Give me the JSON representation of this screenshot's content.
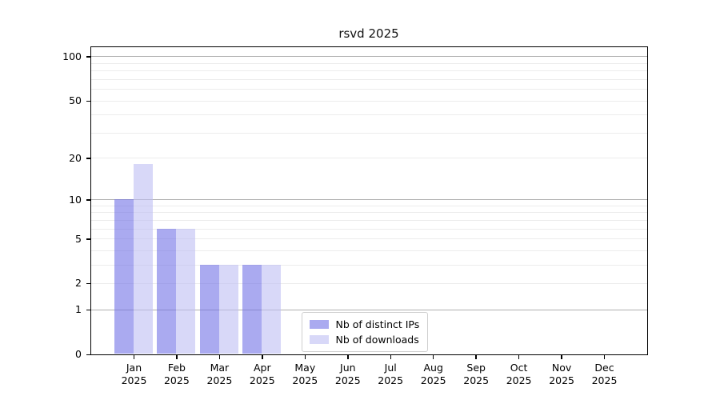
{
  "chart_data": {
    "type": "bar",
    "title": "rsvd 2025",
    "months": [
      "Jan",
      "Feb",
      "Mar",
      "Apr",
      "May",
      "Jun",
      "Jul",
      "Aug",
      "Sep",
      "Oct",
      "Nov",
      "Dec"
    ],
    "year_label": "2025",
    "series": [
      {
        "name": "Nb of distinct IPs",
        "color": "rgba(113,113,230,0.6)",
        "values": [
          10,
          6,
          3,
          3,
          0,
          0,
          0,
          0,
          0,
          0,
          0,
          0
        ]
      },
      {
        "name": "Nb of downloads",
        "color": "rgba(190,190,243,0.6)",
        "values": [
          18,
          6,
          3,
          3,
          0,
          0,
          0,
          0,
          0,
          0,
          0,
          0
        ]
      }
    ],
    "yscale": "log1p",
    "ylim": [
      0,
      116
    ],
    "y_ticks": [
      0,
      1,
      2,
      5,
      10,
      20,
      50,
      100
    ],
    "gridlines": {
      "major": [
        1,
        10,
        100
      ],
      "minor": [
        2,
        3,
        4,
        5,
        6,
        7,
        8,
        9,
        20,
        30,
        40,
        50,
        60,
        70,
        80,
        90
      ],
      "major_color": "#b0b0b0",
      "minor_color": "#ebebeb"
    },
    "legend_position": "lower center",
    "grid": "horizontal only"
  }
}
